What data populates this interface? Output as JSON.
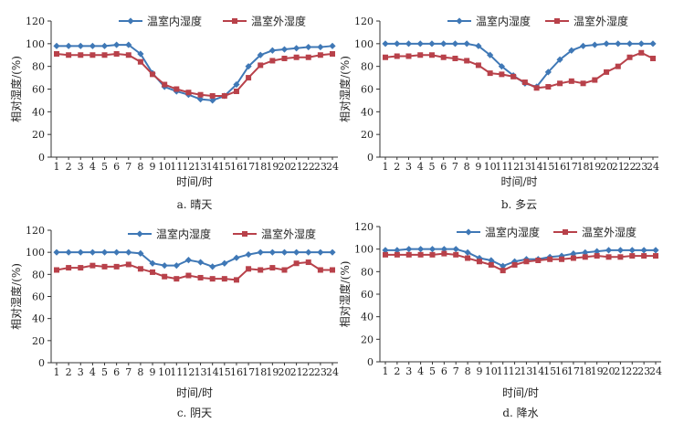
{
  "colors": {
    "inside": "#3f78b6",
    "outside": "#b8414a",
    "axis": "#333333"
  },
  "chart_data": [
    {
      "type": "line",
      "caption": "a. 晴天",
      "xlabel": "时间/时",
      "ylabel": "相对湿度/(%)",
      "ylim": [
        0,
        120
      ],
      "yticks": [
        0,
        20,
        40,
        60,
        80,
        100,
        120
      ],
      "x": [
        1,
        2,
        3,
        4,
        5,
        6,
        7,
        8,
        9,
        10,
        11,
        12,
        13,
        14,
        15,
        16,
        17,
        18,
        19,
        20,
        21,
        22,
        23,
        24
      ],
      "legend": "top-center",
      "series": [
        {
          "name": "温室内湿度",
          "values": [
            98,
            98,
            98,
            98,
            98,
            99,
            99,
            91,
            74,
            62,
            58,
            55,
            51,
            50,
            54,
            64,
            80,
            90,
            94,
            95,
            96,
            97,
            97,
            98
          ]
        },
        {
          "name": "温室外湿度",
          "values": [
            91,
            90,
            90,
            90,
            90,
            91,
            90,
            84,
            73,
            64,
            60,
            57,
            55,
            54,
            54,
            58,
            70,
            81,
            85,
            87,
            88,
            88,
            90,
            91
          ]
        }
      ]
    },
    {
      "type": "line",
      "caption": "b. 多云",
      "xlabel": "时间/时",
      "ylabel": "相对湿度/(%)",
      "ylim": [
        0,
        120
      ],
      "yticks": [
        0,
        20,
        40,
        60,
        80,
        100,
        120
      ],
      "x": [
        1,
        2,
        3,
        4,
        5,
        6,
        7,
        8,
        9,
        10,
        11,
        12,
        13,
        14,
        15,
        16,
        17,
        18,
        19,
        20,
        21,
        22,
        23,
        24
      ],
      "legend": "top-center",
      "series": [
        {
          "name": "温室内湿度",
          "values": [
            100,
            100,
            100,
            100,
            100,
            100,
            100,
            100,
            98,
            90,
            80,
            72,
            65,
            62,
            75,
            86,
            94,
            98,
            99,
            100,
            100,
            100,
            100,
            100
          ]
        },
        {
          "name": "温室外湿度",
          "values": [
            88,
            89,
            89,
            90,
            90,
            88,
            87,
            85,
            81,
            74,
            73,
            71,
            66,
            61,
            62,
            65,
            67,
            65,
            68,
            75,
            80,
            88,
            92,
            87
          ]
        }
      ]
    },
    {
      "type": "line",
      "caption": "c. 阴天",
      "xlabel": "时间/时",
      "ylabel": "相对湿度/(%)",
      "ylim": [
        0,
        120
      ],
      "yticks": [
        0,
        20,
        40,
        60,
        80,
        100,
        120
      ],
      "x": [
        1,
        2,
        3,
        4,
        5,
        6,
        7,
        8,
        9,
        10,
        11,
        12,
        13,
        14,
        15,
        16,
        17,
        18,
        19,
        20,
        21,
        22,
        23,
        24
      ],
      "legend": "top-center",
      "series": [
        {
          "name": "温室内湿度",
          "values": [
            100,
            100,
            100,
            100,
            100,
            100,
            100,
            99,
            90,
            88,
            88,
            93,
            91,
            87,
            90,
            95,
            98,
            100,
            100,
            100,
            100,
            100,
            100,
            100
          ]
        },
        {
          "name": "温室外湿度",
          "values": [
            84,
            86,
            86,
            88,
            87,
            87,
            89,
            85,
            82,
            78,
            76,
            79,
            77,
            76,
            76,
            75,
            85,
            84,
            86,
            84,
            90,
            91,
            84,
            84
          ]
        }
      ]
    },
    {
      "type": "line",
      "caption": "d. 降水",
      "xlabel": "时间/时",
      "ylabel": "相对湿度/(%)",
      "ylim": [
        0,
        120
      ],
      "yticks": [
        0,
        20,
        40,
        60,
        80,
        100,
        120
      ],
      "x": [
        1,
        2,
        3,
        4,
        5,
        6,
        7,
        8,
        9,
        10,
        11,
        12,
        13,
        14,
        15,
        16,
        17,
        18,
        19,
        20,
        21,
        22,
        23,
        24
      ],
      "legend": "top-center",
      "series": [
        {
          "name": "温室内湿度",
          "values": [
            99,
            99,
            100,
            100,
            100,
            100,
            100,
            97,
            92,
            90,
            85,
            89,
            91,
            91,
            93,
            94,
            96,
            97,
            98,
            99,
            99,
            99,
            99,
            99
          ]
        },
        {
          "name": "温室外湿度",
          "values": [
            95,
            95,
            95,
            95,
            95,
            96,
            95,
            92,
            89,
            86,
            81,
            86,
            89,
            90,
            91,
            91,
            92,
            93,
            94,
            93,
            93,
            94,
            94,
            94
          ]
        }
      ]
    }
  ]
}
